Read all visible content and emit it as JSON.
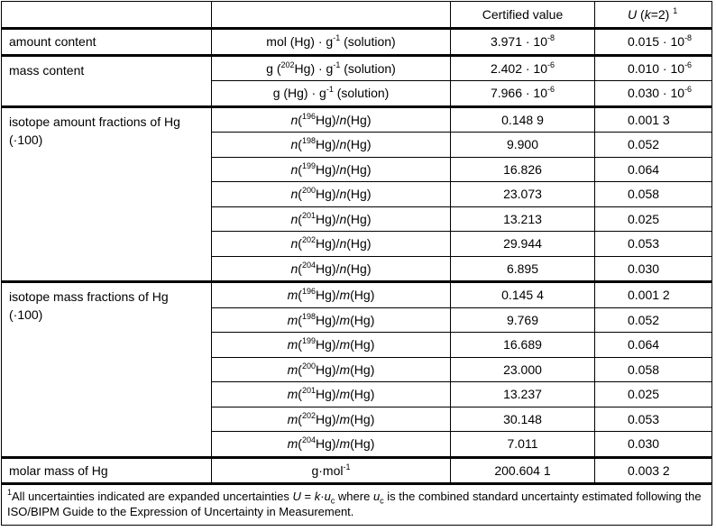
{
  "header": {
    "col3": "Certified value",
    "col4_U": "U",
    "col4_k": "k",
    "col4_rest": "=2)",
    "col4_sup": "1"
  },
  "amount": {
    "label": "amount content",
    "unit_pre": "mol (Hg) · g",
    "unit_sup": "-1",
    "unit_post": " (solution)",
    "value": "3.971 · 10",
    "value_exp": "-8",
    "unc": "0.015 · 10",
    "unc_exp": "-8"
  },
  "mass": {
    "label": "mass content",
    "rows": [
      {
        "unit_pre": "g (",
        "iso": "202",
        "unit_mid": "Hg) · g",
        "unit_sup": "-1",
        "unit_post": " (solution)",
        "value": "2.402 · 10",
        "value_exp": "-6",
        "unc": "0.010 · 10",
        "unc_exp": "-6"
      },
      {
        "unit_pre": "g (",
        "iso": "",
        "unit_mid": "Hg) · g",
        "unit_sup": "-1",
        "unit_post": " (solution)",
        "value": "7.966 · 10",
        "value_exp": "-6",
        "unc": "0.030 · 10",
        "unc_exp": "-6"
      }
    ]
  },
  "isotope_amount": {
    "label": "isotope amount fractions of Hg (·100)",
    "symbol": "n",
    "element": "Hg",
    "rows": [
      {
        "iso": "196",
        "value": "0.148 9",
        "unc": "0.001 3"
      },
      {
        "iso": "198",
        "value": "9.900",
        "unc": "0.052"
      },
      {
        "iso": "199",
        "value": "16.826",
        "unc": "0.064"
      },
      {
        "iso": "200",
        "value": "23.073",
        "unc": "0.058"
      },
      {
        "iso": "201",
        "value": "13.213",
        "unc": "0.025"
      },
      {
        "iso": "202",
        "value": "29.944",
        "unc": "0.053"
      },
      {
        "iso": "204",
        "value": "6.895",
        "unc": "0.030"
      }
    ]
  },
  "isotope_mass": {
    "label": "isotope mass fractions of Hg (·100)",
    "symbol": "m",
    "element": "Hg",
    "rows": [
      {
        "iso": "196",
        "value": "0.145 4",
        "unc": "0.001 2"
      },
      {
        "iso": "198",
        "value": "9.769",
        "unc": "0.052"
      },
      {
        "iso": "199",
        "value": "16.689",
        "unc": "0.064"
      },
      {
        "iso": "200",
        "value": "23.000",
        "unc": "0.058"
      },
      {
        "iso": "201",
        "value": "13.237",
        "unc": "0.025"
      },
      {
        "iso": "202",
        "value": "30.148",
        "unc": "0.053"
      },
      {
        "iso": "204",
        "value": "7.011",
        "unc": "0.030"
      }
    ]
  },
  "molar": {
    "label": "molar mass of Hg",
    "unit": "g·mol",
    "unit_sup": "-1",
    "value": "200.604 1",
    "unc": "0.003 2"
  },
  "footnote": {
    "sup": "1",
    "t1": "All uncertainties indicated are expanded uncertainties ",
    "U": "U",
    "t2": " = ",
    "k": "k",
    "t3": "·",
    "u": "u",
    "c": "c",
    "t4": " where ",
    "t5": " is the combined standard uncertainty estimated following the ISO/BIPM Guide to the Expression of Uncertainty in Measurement."
  }
}
